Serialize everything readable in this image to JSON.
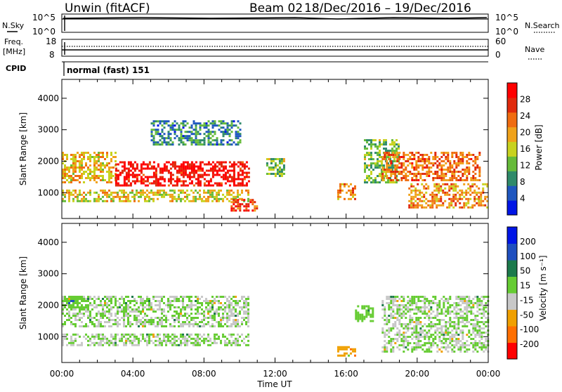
{
  "header": {
    "title": "Unwin (fitACF)",
    "beam": "Beam 02",
    "date_range": "18/Dec/2016 – 19/Dec/2016"
  },
  "top_panels": {
    "nsky_label": "N.Sky",
    "nsky_ticks": [
      "10^5",
      "10^0"
    ],
    "nsearch_label": "N.Search",
    "nsearch_ticks": [
      "10^5",
      "10^0"
    ],
    "freq_label_1": "Freq.",
    "freq_label_2": "[MHz]",
    "freq_ticks": [
      "18",
      "8"
    ],
    "nave_label": "Nave",
    "nave_ticks": [
      "60",
      "0"
    ],
    "cpid_label": "CPID",
    "cpid_value": "normal (fast) 151"
  },
  "chart_data": [
    {
      "type": "heatmap",
      "name": "power",
      "xlabel": "",
      "ylabel": "Slant Range [km]",
      "ylim": [
        180,
        4600
      ],
      "yticks": [
        "1000",
        "2000",
        "3000",
        "4000"
      ],
      "colorbar": {
        "label": "Power [dB]",
        "ticks": [
          "28",
          "24",
          "20",
          "16",
          "12",
          "8",
          "4"
        ],
        "range": [
          0,
          30
        ],
        "colors": [
          "#0015e6",
          "#1f57c0",
          "#2f8a6a",
          "#66bb3a",
          "#c8d21f",
          "#f0a21a",
          "#f06c10",
          "#e02a0c",
          "#ff0000"
        ]
      },
      "features": [
        {
          "start": "00:00",
          "end": "03:00",
          "range_km": [
            1300,
            2300
          ],
          "power_db": 18
        },
        {
          "start": "03:00",
          "end": "10:30",
          "range_km": [
            1200,
            2000
          ],
          "power_db": 28
        },
        {
          "start": "00:00",
          "end": "10:30",
          "range_km": [
            700,
            1100
          ],
          "power_db": 16
        },
        {
          "start": "05:00",
          "end": "10:00",
          "range_km": [
            2500,
            3300
          ],
          "power_db": 8
        },
        {
          "start": "09:30",
          "end": "11:00",
          "range_km": [
            400,
            800
          ],
          "power_db": 24
        },
        {
          "start": "11:30",
          "end": "12:30",
          "range_km": [
            1500,
            2100
          ],
          "power_db": 12
        },
        {
          "start": "15:30",
          "end": "16:30",
          "range_km": [
            800,
            1300
          ],
          "power_db": 20
        },
        {
          "start": "17:00",
          "end": "19:00",
          "range_km": [
            1300,
            2700
          ],
          "power_db": 12
        },
        {
          "start": "18:00",
          "end": "23:30",
          "range_km": [
            1400,
            2300
          ],
          "power_db": 22
        },
        {
          "start": "19:30",
          "end": "24:00",
          "range_km": [
            500,
            1300
          ],
          "power_db": 20
        }
      ]
    },
    {
      "type": "heatmap",
      "name": "velocity",
      "xlabel": "Time UT",
      "ylabel": "Slant Range [km]",
      "ylim": [
        180,
        4600
      ],
      "yticks": [
        "1000",
        "2000",
        "3000",
        "4000"
      ],
      "xticks": [
        "00:00",
        "04:00",
        "08:00",
        "12:00",
        "16:00",
        "20:00",
        "00:00"
      ],
      "colorbar": {
        "label": "Velocity [m s⁻¹]",
        "ticks": [
          "200",
          "100",
          "50",
          "15",
          "-15",
          "-50",
          "-100",
          "-200"
        ],
        "range": [
          -250,
          250
        ],
        "colors": [
          "#ff0000",
          "#ff6f00",
          "#f0a000",
          "#c8c8c8",
          "#66cc33",
          "#1c7a4c",
          "#1f4fbf",
          "#0015e6"
        ]
      },
      "features": [
        {
          "start": "00:00",
          "end": "10:30",
          "range_km": [
            1300,
            2300
          ],
          "velocity_ms": 0
        },
        {
          "start": "00:00",
          "end": "10:30",
          "range_km": [
            700,
            1100
          ],
          "velocity_ms": 0
        },
        {
          "start": "00:00",
          "end": "01:30",
          "range_km": [
            1900,
            2300
          ],
          "velocity_ms": 40
        },
        {
          "start": "15:30",
          "end": "16:30",
          "range_km": [
            400,
            700
          ],
          "velocity_ms": -80
        },
        {
          "start": "16:30",
          "end": "17:30",
          "range_km": [
            1500,
            2000
          ],
          "velocity_ms": 40
        },
        {
          "start": "18:00",
          "end": "24:00",
          "range_km": [
            500,
            2300
          ],
          "velocity_ms": 0
        }
      ]
    }
  ]
}
